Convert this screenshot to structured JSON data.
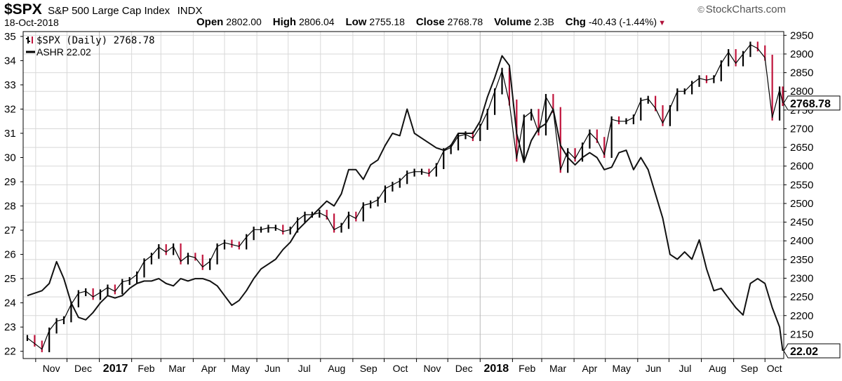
{
  "header": {
    "symbol": "$SPX",
    "name": "S&P 500 Large Cap Index",
    "exchange": "INDX",
    "brand": "StockCharts.com",
    "brand_icon": "copyright-icon",
    "date": "18-Oct-2018",
    "open_label": "Open",
    "open": "2802.00",
    "high_label": "High",
    "high": "2806.04",
    "low_label": "Low",
    "low": "2755.18",
    "close_label": "Close",
    "close": "2768.78",
    "volume_label": "Volume",
    "volume": "2.3B",
    "chg_label": "Chg",
    "chg": "-40.43 (-1.44%)"
  },
  "colors": {
    "up": "#000000",
    "down": "#c0143c",
    "grid": "#d8d8d8",
    "axis": "#000000"
  },
  "chart_data": {
    "type": "line",
    "grid": true,
    "legend_placement": "top-left",
    "legend": [
      {
        "label": "$SPX (Daily) 2768.78",
        "style": "ohlc-bars"
      },
      {
        "label": "ASHR 22.02",
        "style": "line"
      }
    ],
    "x_ticks": [
      "Nov",
      "Dec",
      "2017",
      "Feb",
      "Mar",
      "Apr",
      "May",
      "Jun",
      "Jul",
      "Aug",
      "Sep",
      "Oct",
      "Nov",
      "Dec",
      "2018",
      "Feb",
      "Mar",
      "Apr",
      "May",
      "Jun",
      "Jul",
      "Aug",
      "Sep",
      "Oct"
    ],
    "x_ticks_bold": [
      "2017",
      "2018"
    ],
    "left_axis": {
      "series": "ASHR",
      "ylim": [
        21.7,
        35.2
      ],
      "ticks": [
        22,
        23,
        24,
        25,
        26,
        27,
        28,
        29,
        30,
        31,
        32,
        33,
        34,
        35
      ]
    },
    "right_axis": {
      "series": "$SPX",
      "ylim": [
        2085,
        2960
      ],
      "ticks": [
        2150,
        2200,
        2250,
        2300,
        2350,
        2400,
        2450,
        2500,
        2550,
        2600,
        2650,
        2700,
        2750,
        2800,
        2850,
        2900,
        2950
      ]
    },
    "last_value_labels": {
      "SPX": "2768.78",
      "ASHR": "22.02"
    },
    "series": [
      {
        "name": "$SPX",
        "axis": "right",
        "x": [
          "2016-10-24",
          "2016-10-31",
          "2016-11-07",
          "2016-11-14",
          "2016-11-21",
          "2016-11-28",
          "2016-12-05",
          "2016-12-12",
          "2016-12-19",
          "2016-12-26",
          "2017-01-02",
          "2017-01-09",
          "2017-01-16",
          "2017-01-23",
          "2017-01-30",
          "2017-02-06",
          "2017-02-13",
          "2017-02-20",
          "2017-02-27",
          "2017-03-06",
          "2017-03-13",
          "2017-03-20",
          "2017-03-27",
          "2017-04-03",
          "2017-04-10",
          "2017-04-17",
          "2017-04-24",
          "2017-05-01",
          "2017-05-08",
          "2017-05-15",
          "2017-05-22",
          "2017-05-29",
          "2017-06-05",
          "2017-06-12",
          "2017-06-19",
          "2017-06-26",
          "2017-07-03",
          "2017-07-10",
          "2017-07-17",
          "2017-07-24",
          "2017-07-31",
          "2017-08-07",
          "2017-08-14",
          "2017-08-21",
          "2017-08-28",
          "2017-09-04",
          "2017-09-11",
          "2017-09-18",
          "2017-09-25",
          "2017-10-02",
          "2017-10-09",
          "2017-10-16",
          "2017-10-23",
          "2017-10-30",
          "2017-11-06",
          "2017-11-13",
          "2017-11-20",
          "2017-11-27",
          "2017-12-04",
          "2017-12-11",
          "2017-12-18",
          "2017-12-25",
          "2018-01-01",
          "2018-01-08",
          "2018-01-15",
          "2018-01-22",
          "2018-01-29",
          "2018-02-05",
          "2018-02-12",
          "2018-02-19",
          "2018-02-26",
          "2018-03-05",
          "2018-03-12",
          "2018-03-19",
          "2018-03-26",
          "2018-04-02",
          "2018-04-09",
          "2018-04-16",
          "2018-04-23",
          "2018-04-30",
          "2018-05-07",
          "2018-05-14",
          "2018-05-21",
          "2018-05-28",
          "2018-06-04",
          "2018-06-11",
          "2018-06-18",
          "2018-06-25",
          "2018-07-02",
          "2018-07-09",
          "2018-07-16",
          "2018-07-23",
          "2018-07-30",
          "2018-08-06",
          "2018-08-13",
          "2018-08-20",
          "2018-08-27",
          "2018-09-03",
          "2018-09-10",
          "2018-09-17",
          "2018-09-24",
          "2018-10-01",
          "2018-10-08",
          "2018-10-15",
          "2018-10-18"
        ],
        "values": [
          2140,
          2125,
          2110,
          2160,
          2185,
          2190,
          2230,
          2260,
          2265,
          2250,
          2262,
          2275,
          2265,
          2290,
          2295,
          2310,
          2345,
          2360,
          2383,
          2370,
          2385,
          2345,
          2360,
          2355,
          2330,
          2345,
          2385,
          2395,
          2390,
          2385,
          2410,
          2430,
          2430,
          2435,
          2435,
          2425,
          2430,
          2455,
          2470,
          2470,
          2475,
          2465,
          2430,
          2440,
          2470,
          2460,
          2495,
          2500,
          2510,
          2540,
          2550,
          2560,
          2580,
          2585,
          2585,
          2580,
          2600,
          2640,
          2650,
          2680,
          2685,
          2675,
          2705,
          2745,
          2800,
          2855,
          2770,
          2620,
          2730,
          2745,
          2690,
          2785,
          2750,
          2590,
          2640,
          2620,
          2655,
          2690,
          2670,
          2630,
          2725,
          2720,
          2720,
          2730,
          2775,
          2780,
          2755,
          2715,
          2755,
          2800,
          2800,
          2820,
          2835,
          2830,
          2835,
          2875,
          2905,
          2875,
          2900,
          2925,
          2915,
          2890,
          2730,
          2805,
          2768.78
        ]
      },
      {
        "name": "ASHR",
        "axis": "left",
        "x": [
          "2016-10-24",
          "2016-10-31",
          "2016-11-07",
          "2016-11-14",
          "2016-11-21",
          "2016-11-28",
          "2016-12-05",
          "2016-12-12",
          "2016-12-19",
          "2016-12-26",
          "2017-01-02",
          "2017-01-09",
          "2017-01-16",
          "2017-01-23",
          "2017-01-30",
          "2017-02-06",
          "2017-02-13",
          "2017-02-20",
          "2017-02-27",
          "2017-03-06",
          "2017-03-13",
          "2017-03-20",
          "2017-03-27",
          "2017-04-03",
          "2017-04-10",
          "2017-04-17",
          "2017-04-24",
          "2017-05-01",
          "2017-05-08",
          "2017-05-15",
          "2017-05-22",
          "2017-05-29",
          "2017-06-05",
          "2017-06-12",
          "2017-06-19",
          "2017-06-26",
          "2017-07-03",
          "2017-07-10",
          "2017-07-17",
          "2017-07-24",
          "2017-07-31",
          "2017-08-07",
          "2017-08-14",
          "2017-08-21",
          "2017-08-28",
          "2017-09-04",
          "2017-09-11",
          "2017-09-18",
          "2017-09-25",
          "2017-10-02",
          "2017-10-09",
          "2017-10-16",
          "2017-10-23",
          "2017-10-30",
          "2017-11-06",
          "2017-11-13",
          "2017-11-20",
          "2017-11-27",
          "2017-12-04",
          "2017-12-11",
          "2017-12-18",
          "2017-12-25",
          "2018-01-01",
          "2018-01-08",
          "2018-01-15",
          "2018-01-22",
          "2018-01-29",
          "2018-02-05",
          "2018-02-12",
          "2018-02-19",
          "2018-02-26",
          "2018-03-05",
          "2018-03-12",
          "2018-03-19",
          "2018-03-26",
          "2018-04-02",
          "2018-04-09",
          "2018-04-16",
          "2018-04-23",
          "2018-04-30",
          "2018-05-07",
          "2018-05-14",
          "2018-05-21",
          "2018-05-28",
          "2018-06-04",
          "2018-06-11",
          "2018-06-18",
          "2018-06-25",
          "2018-07-02",
          "2018-07-09",
          "2018-07-16",
          "2018-07-23",
          "2018-07-30",
          "2018-08-06",
          "2018-08-13",
          "2018-08-20",
          "2018-08-27",
          "2018-09-03",
          "2018-09-10",
          "2018-09-17",
          "2018-09-24",
          "2018-10-01",
          "2018-10-08",
          "2018-10-15",
          "2018-10-18"
        ],
        "values": [
          24.3,
          24.4,
          24.5,
          24.8,
          25.7,
          25.0,
          24.0,
          23.4,
          23.3,
          23.6,
          24.0,
          24.3,
          24.2,
          24.3,
          24.6,
          24.8,
          24.9,
          24.9,
          25.0,
          24.8,
          24.7,
          25.0,
          24.9,
          25.0,
          25.0,
          24.9,
          24.7,
          24.3,
          23.9,
          24.1,
          24.5,
          25.0,
          25.4,
          25.6,
          25.8,
          26.2,
          26.5,
          27.0,
          27.3,
          27.6,
          27.9,
          28.2,
          28.0,
          28.5,
          29.5,
          29.5,
          29.1,
          29.7,
          29.9,
          30.5,
          31.0,
          30.9,
          32.0,
          31.0,
          30.8,
          30.6,
          30.4,
          30.3,
          30.5,
          31.0,
          31.0,
          31.0,
          31.5,
          32.5,
          33.3,
          34.2,
          33.8,
          31.0,
          29.8,
          30.7,
          31.2,
          31.4,
          32.0,
          30.5,
          30.0,
          29.7,
          30.0,
          30.2,
          30.0,
          29.5,
          29.6,
          30.2,
          30.3,
          29.5,
          30.0,
          29.5,
          28.5,
          27.5,
          26.0,
          25.8,
          26.1,
          25.8,
          26.6,
          25.4,
          24.5,
          24.6,
          24.2,
          23.8,
          23.5,
          24.8,
          25.0,
          24.8,
          23.8,
          23.0,
          22.02
        ]
      }
    ]
  }
}
